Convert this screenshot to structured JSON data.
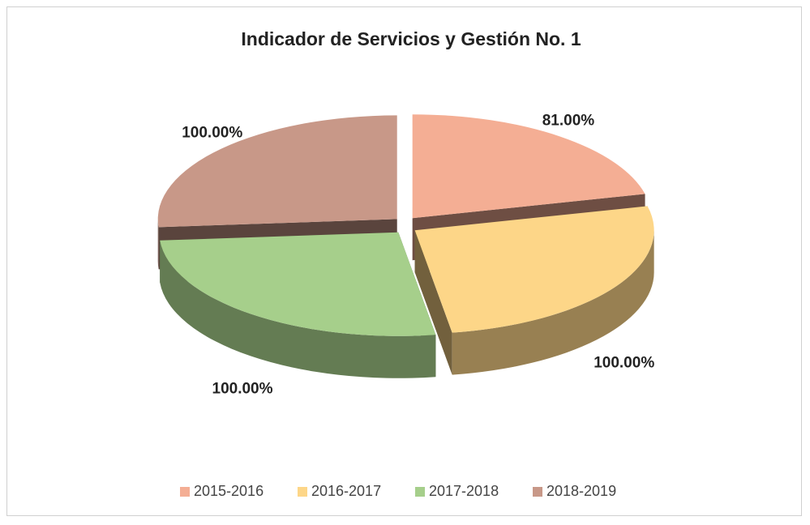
{
  "chart_data": {
    "type": "pie",
    "title": "Indicador  de Servicios y Gestión No. 1",
    "categories": [
      "2015-2016",
      "2016-2017",
      "2017-2018",
      "2018-2019"
    ],
    "values": [
      81,
      100,
      100,
      100
    ],
    "value_labels": [
      "81.00%",
      "100.00%",
      "100.00%",
      "100.00%"
    ],
    "colors": [
      "#f4ae94",
      "#fdd688",
      "#a6cf8b",
      "#c89888"
    ],
    "legend": "bottom"
  }
}
